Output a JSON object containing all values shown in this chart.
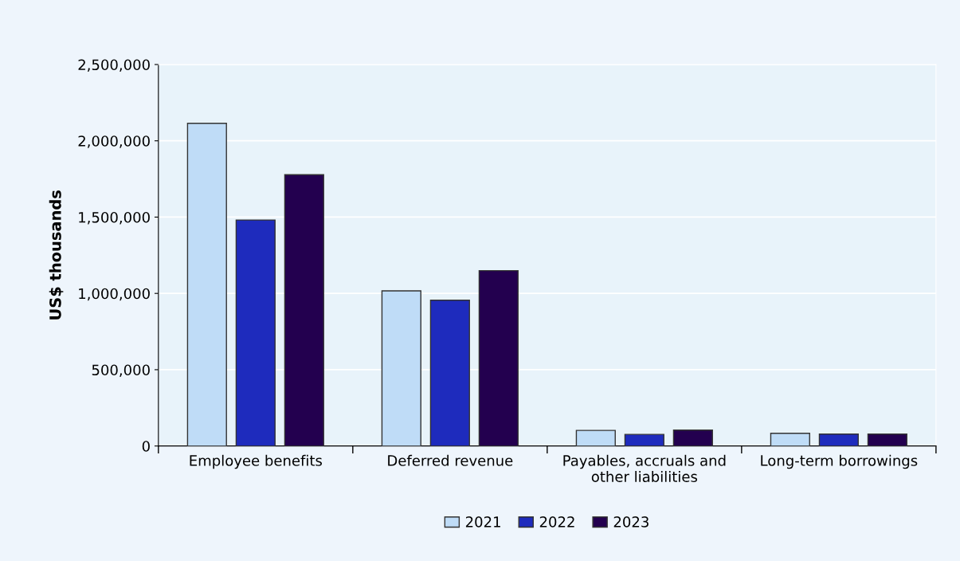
{
  "chart_data": {
    "type": "bar",
    "ylabel": "US$ thousands",
    "categories": [
      "Employee benefits",
      "Deferred revenue",
      "Payables, accruals and\nother liabilities",
      "Long-term borrowings"
    ],
    "series": [
      {
        "name": "2021",
        "color": "#bfdcf7",
        "values": [
          2115000,
          1017000,
          102000,
          83000
        ]
      },
      {
        "name": "2022",
        "color": "#1e2bbd",
        "values": [
          1481000,
          955000,
          76000,
          78000
        ]
      },
      {
        "name": "2023",
        "color": "#23004f",
        "values": [
          1778000,
          1149000,
          104000,
          78000
        ]
      }
    ],
    "ylim": [
      0,
      2500000
    ],
    "yticks": [
      {
        "value": 0,
        "label": "0"
      },
      {
        "value": 500000,
        "label": "500,000"
      },
      {
        "value": 1000000,
        "label": "1,000,000"
      },
      {
        "value": 1500000,
        "label": "1,500,000"
      },
      {
        "value": 2000000,
        "label": "2,000,000"
      },
      {
        "value": 2500000,
        "label": "2,500,000"
      }
    ],
    "grid": "y",
    "legend": "bottom"
  }
}
